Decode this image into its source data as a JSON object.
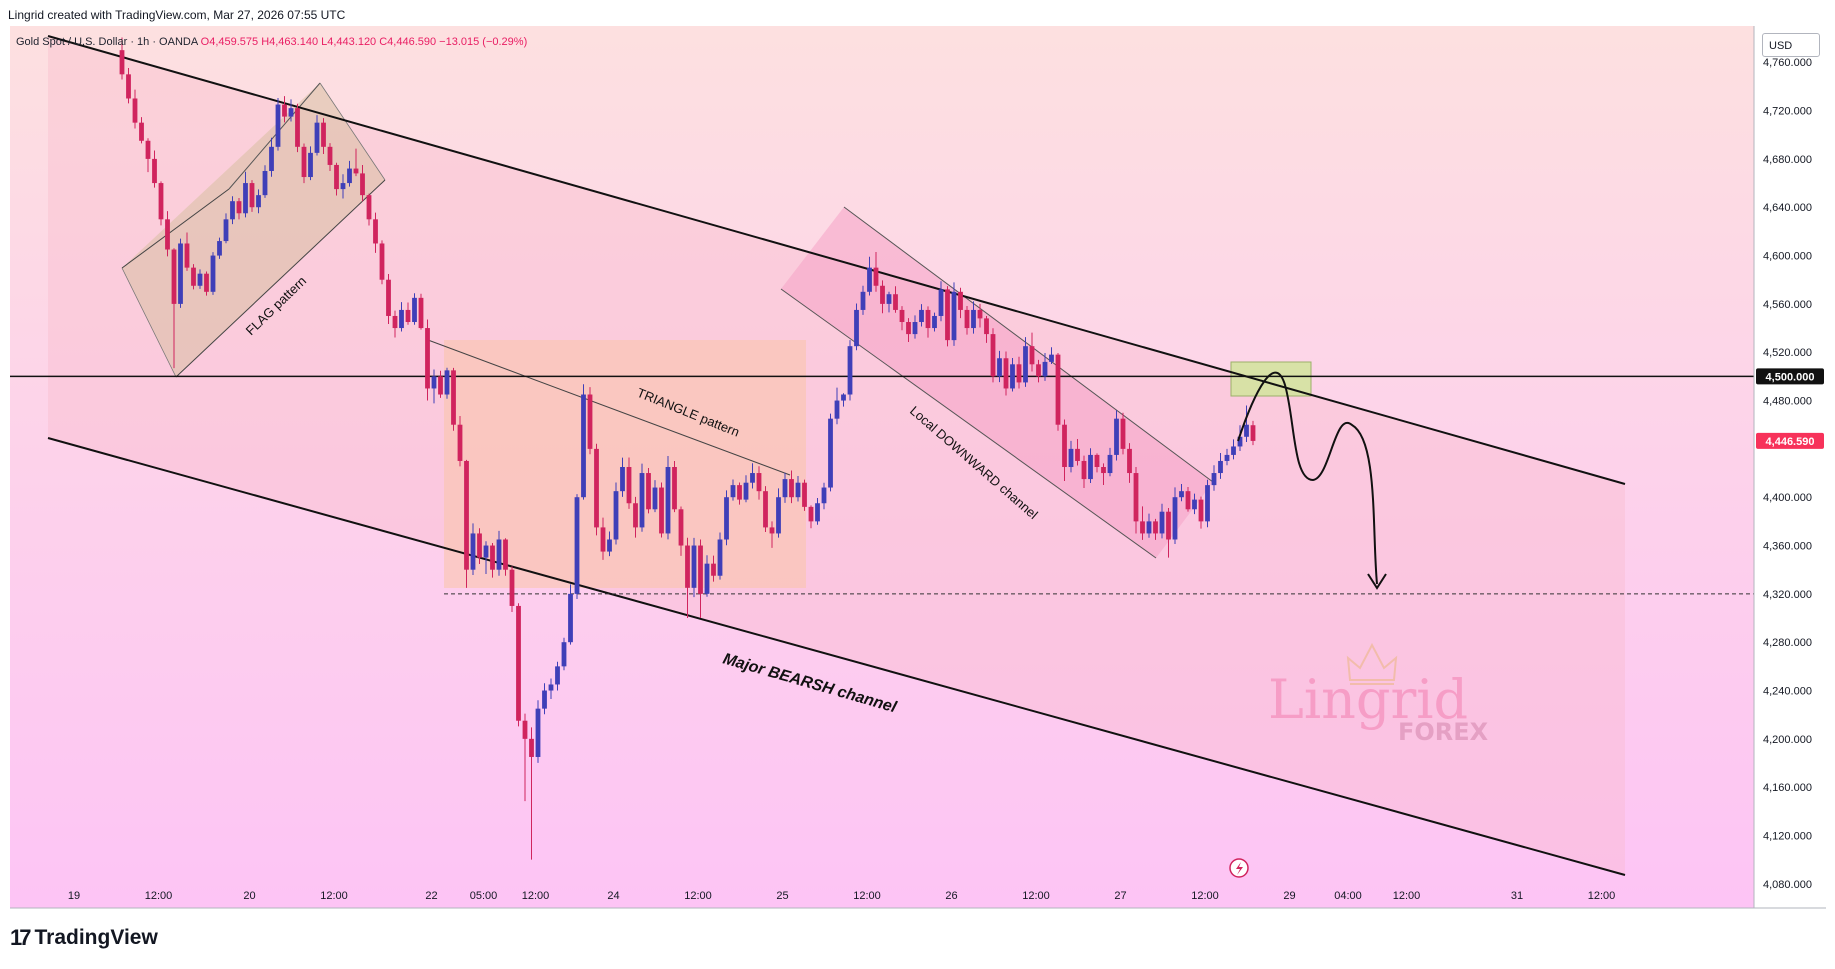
{
  "header": {
    "credit": "Lingrid created with TradingView.com, Mar 27, 2026 07:55 UTC"
  },
  "symbol": {
    "name": "Gold Spot / U.S. Dollar · 1h · OANDA",
    "ohlc": "O4,459.575 H4,463.140 L4,443.120 C4,446.590 −13.015 (−0.29%)"
  },
  "currency": "USD",
  "footer": {
    "brand": "TradingView",
    "logo_mark": "17"
  },
  "watermark": {
    "brand": "Lingrid",
    "sub": "FOREX"
  },
  "colors": {
    "bg_top": "#fde0e0",
    "bg_bottom": "#fdc4f5",
    "up": "#3f3fb8",
    "down": "#d0245e",
    "channel_fill": "#f6b8c9",
    "flag_fill": "#d9c0a3",
    "triangle_fill": "#f9c4a8",
    "local_fill": "#f5a3c7",
    "zone_fill": "#d4e3a0",
    "price_tag": "#f7325a"
  },
  "annotations": {
    "flag": "FLAG pattern",
    "triangle": "TRIANGLE pattern",
    "local_channel": "Local DOWNWARD channel",
    "major_channel": "Major BEARSH channel"
  },
  "chart_data": {
    "type": "candlestick",
    "ylim": [
      4060,
      4790
    ],
    "y_ticks": [
      "4,760.000",
      "4,720.000",
      "4,680.000",
      "4,640.000",
      "4,600.000",
      "4,560.000",
      "4,520.000",
      "4,480.000",
      "4,440.000",
      "4,400.000",
      "4,360.000",
      "4,320.000",
      "4,280.000",
      "4,240.000",
      "4,200.000",
      "4,160.000",
      "4,120.000",
      "4,080.000"
    ],
    "y_tick_values": [
      4760,
      4720,
      4680,
      4640,
      4600,
      4560,
      4520,
      4480,
      4440,
      4400,
      4360,
      4320,
      4280,
      4240,
      4200,
      4160,
      4120,
      4080
    ],
    "x_ticks": [
      "19",
      "12:00",
      "20",
      "12:00",
      "22",
      "05:00",
      "12:00",
      "24",
      "12:00",
      "25",
      "12:00",
      "26",
      "12:00",
      "27",
      "12:00",
      "29",
      "04:00",
      "12:00",
      "31",
      "12:00"
    ],
    "x_tick_bars": [
      0,
      13,
      27,
      40,
      55,
      63,
      71,
      83,
      96,
      109,
      122,
      135,
      148,
      161,
      174,
      187,
      196,
      205,
      222,
      235
    ],
    "horizontal_level": {
      "value": 4500,
      "label": "4,500.000"
    },
    "target_level": 4320,
    "last_price": {
      "value": 4446.59,
      "label": "4,446.590"
    },
    "candles": [
      [
        4770.0,
        4780.5,
        4745.7,
        4750.0
      ],
      [
        4750.0,
        4755.2,
        4726.0,
        4730.0
      ],
      [
        4730.0,
        4737.3,
        4705.2,
        4710.0
      ],
      [
        4710.0,
        4714.6,
        4692.9,
        4695.0
      ],
      [
        4695.0,
        4697.1,
        4669.1,
        4680.0
      ],
      [
        4680.0,
        4687.0,
        4656.2,
        4660.0
      ],
      [
        4660.0,
        4661.4,
        4625.0,
        4630.0
      ],
      [
        4630.0,
        4636.8,
        4599.3,
        4605.0
      ],
      [
        4605.0,
        4606.0,
        4506.8,
        4560.0
      ],
      [
        4560.0,
        4614.0,
        4556.7,
        4610.0
      ],
      [
        4610.0,
        4619.1,
        4587.3,
        4590.0
      ],
      [
        4590.0,
        4592.9,
        4572.0,
        4575.0
      ],
      [
        4575.0,
        4588.6,
        4572.4,
        4585.0
      ],
      [
        4585.0,
        4586.8,
        4566.8,
        4570.0
      ],
      [
        4570.0,
        4602.8,
        4567.5,
        4600.0
      ],
      [
        4600.0,
        4614.8,
        4597.3,
        4612.0
      ],
      [
        4612.0,
        4634.9,
        4610.2,
        4630.0
      ],
      [
        4630.0,
        4649.1,
        4626.0,
        4645.0
      ],
      [
        4645.0,
        4647.6,
        4630.0,
        4635.0
      ],
      [
        4635.0,
        4669.4,
        4631.6,
        4660.0
      ],
      [
        4660.0,
        4662.4,
        4636.2,
        4640.0
      ],
      [
        4640.0,
        4654.8,
        4635.0,
        4650.0
      ],
      [
        4650.0,
        4674.7,
        4647.7,
        4670.0
      ],
      [
        4670.0,
        4697.5,
        4665.2,
        4690.0
      ],
      [
        4690.0,
        4730.4,
        4686.9,
        4725.0
      ],
      [
        4725.0,
        4732.0,
        4710.2,
        4715.0
      ],
      [
        4715.0,
        4729.3,
        4711.0,
        4722.0
      ],
      [
        4722.0,
        4725.7,
        4685.6,
        4690.0
      ],
      [
        4690.0,
        4692.7,
        4660.0,
        4665.0
      ],
      [
        4665.0,
        4690.4,
        4662.4,
        4685.0
      ],
      [
        4685.0,
        4716.2,
        4682.8,
        4710.0
      ],
      [
        4710.0,
        4713.8,
        4684.1,
        4690.0
      ],
      [
        4690.0,
        4693.1,
        4670.0,
        4675.0
      ],
      [
        4675.0,
        4676.8,
        4649.7,
        4655.0
      ],
      [
        4655.0,
        4667.3,
        4647.2,
        4660.0
      ],
      [
        4660.0,
        4678.4,
        4657.1,
        4672.0
      ],
      [
        4672.0,
        4688.5,
        4665.7,
        4668.0
      ],
      [
        4668.0,
        4675.0,
        4645.0,
        4650.0
      ],
      [
        4650.0,
        4651.3,
        4624.9,
        4630.0
      ],
      [
        4630.0,
        4635.5,
        4602.2,
        4610.0
      ],
      [
        4610.0,
        4612.6,
        4576.3,
        4580.0
      ],
      [
        4580.0,
        4584.7,
        4543.4,
        4550.0
      ],
      [
        4550.0,
        4554.4,
        4532.2,
        4540.0
      ],
      [
        4540.0,
        4561.5,
        4537.1,
        4555.0
      ],
      [
        4555.0,
        4561.1,
        4542.7,
        4545.0
      ],
      [
        4545.0,
        4568.8,
        4542.7,
        4565.0
      ],
      [
        4565.0,
        4568.4,
        4538.7,
        4540.0
      ],
      [
        4540.0,
        4547.1,
        4480.0,
        4490.0
      ],
      [
        4490.0,
        4505.7,
        4477.7,
        4500.0
      ],
      [
        4500.0,
        4504.7,
        4482.2,
        4485.0
      ],
      [
        4485.0,
        4507.1,
        4481.5,
        4505.0
      ],
      [
        4505.0,
        4507.0,
        4455.0,
        4460.0
      ],
      [
        4460.0,
        4467.2,
        4425.5,
        4430.0
      ],
      [
        4430.0,
        4430.9,
        4325.0,
        4340.0
      ],
      [
        4340.0,
        4378.3,
        4335.6,
        4370.0
      ],
      [
        4370.0,
        4374.3,
        4344.7,
        4350.0
      ],
      [
        4350.0,
        4363.5,
        4336.4,
        4360.0
      ],
      [
        4360.0,
        4362.1,
        4333.4,
        4340.0
      ],
      [
        4340.0,
        4372.1,
        4335.0,
        4365.0
      ],
      [
        4365.0,
        4366.0,
        4335.0,
        4340.0
      ],
      [
        4340.0,
        4342.8,
        4305.0,
        4310.0
      ],
      [
        4310.0,
        4312.2,
        4210.3,
        4215.0
      ],
      [
        4215.0,
        4220.9,
        4148.5,
        4200.0
      ],
      [
        4200.0,
        4209.5,
        4100.0,
        4185.0
      ],
      [
        4185.0,
        4231.9,
        4180.1,
        4225.0
      ],
      [
        4225.0,
        4246.0,
        4220.4,
        4240.0
      ],
      [
        4240.0,
        4250.0,
        4233.0,
        4245.0
      ],
      [
        4245.0,
        4263.8,
        4240.0,
        4260.0
      ],
      [
        4260.0,
        4283.7,
        4256.8,
        4280.0
      ],
      [
        4280.0,
        4327.9,
        4278.0,
        4320.0
      ],
      [
        4320.0,
        4402.6,
        4315.7,
        4400.0
      ],
      [
        4400.0,
        4493.5,
        4398.0,
        4485.0
      ],
      [
        4485.0,
        4491.1,
        4435.6,
        4440.0
      ],
      [
        4440.0,
        4444.2,
        4368.4,
        4375.0
      ],
      [
        4375.0,
        4383.1,
        4348.1,
        4355.0
      ],
      [
        4355.0,
        4371.6,
        4351.2,
        4365.0
      ],
      [
        4365.0,
        4412.2,
        4360.9,
        4405.0
      ],
      [
        4405.0,
        4432.8,
        4400.3,
        4425.0
      ],
      [
        4425.0,
        4432.9,
        4390.3,
        4395.0
      ],
      [
        4395.0,
        4400.3,
        4366.5,
        4375.0
      ],
      [
        4375.0,
        4427.8,
        4371.4,
        4420.0
      ],
      [
        4420.0,
        4424.2,
        4386.6,
        4390.0
      ],
      [
        4390.0,
        4414.1,
        4387.7,
        4408.0
      ],
      [
        4408.0,
        4412.2,
        4366.6,
        4370.0
      ],
      [
        4370.0,
        4434.1,
        4365.1,
        4425.0
      ],
      [
        4425.0,
        4430.0,
        4387.6,
        4390.0
      ],
      [
        4390.0,
        4392.3,
        4351.4,
        4360.0
      ],
      [
        4360.0,
        4366.4,
        4300.0,
        4325.0
      ],
      [
        4325.0,
        4366.3,
        4317.3,
        4360.0
      ],
      [
        4360.0,
        4365.0,
        4300.0,
        4320.0
      ],
      [
        4320.0,
        4352.0,
        4317.6,
        4345.0
      ],
      [
        4345.0,
        4351.6,
        4330.1,
        4335.0
      ],
      [
        4335.0,
        4370.8,
        4331.8,
        4365.0
      ],
      [
        4365.0,
        4405.7,
        4360.2,
        4400.0
      ],
      [
        4400.0,
        4414.7,
        4397.2,
        4410.0
      ],
      [
        4410.0,
        4412.2,
        4393.9,
        4398.0
      ],
      [
        4398.0,
        4418.2,
        4395.8,
        4412.0
      ],
      [
        4412.0,
        4428.1,
        4407.2,
        4420.0
      ],
      [
        4420.0,
        4425.6,
        4398.0,
        4405.0
      ],
      [
        4405.0,
        4409.2,
        4371.2,
        4375.0
      ],
      [
        4375.0,
        4380.0,
        4358.1,
        4370.0
      ],
      [
        4370.0,
        4407.3,
        4366.5,
        4400.0
      ],
      [
        4400.0,
        4420.2,
        4395.3,
        4415.0
      ],
      [
        4415.0,
        4422.1,
        4395.1,
        4400.0
      ],
      [
        4400.0,
        4417.6,
        4396.4,
        4412.0
      ],
      [
        4412.0,
        4414.5,
        4388.7,
        4392.0
      ],
      [
        4392.0,
        4393.2,
        4374.3,
        4380.0
      ],
      [
        4380.0,
        4399.3,
        4377.2,
        4395.0
      ],
      [
        4395.0,
        4412.0,
        4390.0,
        4408.0
      ],
      [
        4408.0,
        4469.2,
        4404.8,
        4465.0
      ],
      [
        4465.0,
        4490.7,
        4460.4,
        4480.0
      ],
      [
        4480.0,
        4486.0,
        4475.0,
        4485.0
      ],
      [
        4485.0,
        4530.0,
        4480.0,
        4525.0
      ],
      [
        4525.0,
        4560.3,
        4521.6,
        4555.0
      ],
      [
        4555.0,
        4575.0,
        4550.9,
        4570.0
      ],
      [
        4570.0,
        4599.0,
        4566.9,
        4590.0
      ],
      [
        4590.0,
        4602.9,
        4570.0,
        4575.0
      ],
      [
        4575.0,
        4579.5,
        4552.3,
        4560.0
      ],
      [
        4560.0,
        4570.0,
        4553.0,
        4568.0
      ],
      [
        4568.0,
        4574.6,
        4552.7,
        4555.0
      ],
      [
        4555.0,
        4558.2,
        4538.2,
        4545.0
      ],
      [
        4545.0,
        4548.2,
        4528.5,
        4535.0
      ],
      [
        4535.0,
        4550.5,
        4531.2,
        4545.0
      ],
      [
        4545.0,
        4559.8,
        4541.3,
        4555.0
      ],
      [
        4555.0,
        4557.9,
        4532.1,
        4540.0
      ],
      [
        4540.0,
        4552.8,
        4537.1,
        4550.0
      ],
      [
        4550.0,
        4578.7,
        4545.6,
        4572.0
      ],
      [
        4572.0,
        4574.7,
        4524.8,
        4530.0
      ],
      [
        4530.0,
        4577.8,
        4525.2,
        4570.0
      ],
      [
        4570.0,
        4573.4,
        4548.2,
        4555.0
      ],
      [
        4555.0,
        4558.3,
        4534.6,
        4540.0
      ],
      [
        4540.0,
        4562.1,
        4535.4,
        4555.0
      ],
      [
        4555.0,
        4560.0,
        4540.5,
        4548.0
      ],
      [
        4548.0,
        4550.0,
        4527.7,
        4535.0
      ],
      [
        4535.0,
        4539.8,
        4495.0,
        4500.0
      ],
      [
        4500.0,
        4521.1,
        4495.2,
        4515.0
      ],
      [
        4515.0,
        4520.6,
        4484.2,
        4490.0
      ],
      [
        4490.0,
        4515.2,
        4487.5,
        4510.0
      ],
      [
        4510.0,
        4516.3,
        4490.0,
        4495.0
      ],
      [
        4495.0,
        4532.5,
        4491.3,
        4525.0
      ],
      [
        4525.0,
        4536.2,
        4504.0,
        4510.0
      ],
      [
        4510.0,
        4513.7,
        4495.0,
        4500.0
      ],
      [
        4500.0,
        4519.4,
        4496.3,
        4512.0
      ],
      [
        4512.0,
        4524.1,
        4510.2,
        4518.0
      ],
      [
        4518.0,
        4519.4,
        4455.0,
        4460.0
      ],
      [
        4460.0,
        4464.3,
        4413.4,
        4425.0
      ],
      [
        4425.0,
        4446.6,
        4420.5,
        4440.0
      ],
      [
        4440.0,
        4448.2,
        4426.2,
        4430.0
      ],
      [
        4430.0,
        4434.4,
        4407.6,
        4415.0
      ],
      [
        4415.0,
        4440.5,
        4411.8,
        4435.0
      ],
      [
        4435.0,
        4436.3,
        4420.5,
        4425.0
      ],
      [
        4425.0,
        4428.0,
        4410.1,
        4420.0
      ],
      [
        4420.0,
        4440.8,
        4417.3,
        4435.0
      ],
      [
        4435.0,
        4471.9,
        4430.4,
        4465.0
      ],
      [
        4465.0,
        4469.9,
        4435.4,
        4440.0
      ],
      [
        4440.0,
        4444.8,
        4411.9,
        4420.0
      ],
      [
        4420.0,
        4425.0,
        4370.0,
        4380.0
      ],
      [
        4380.0,
        4392.4,
        4364.7,
        4370.0
      ],
      [
        4370.0,
        4386.4,
        4366.4,
        4380.0
      ],
      [
        4380.0,
        4382.1,
        4364.7,
        4370.0
      ],
      [
        4370.0,
        4394.6,
        4365.9,
        4388.0
      ],
      [
        4388.0,
        4391.1,
        4350.0,
        4365.0
      ],
      [
        4365.0,
        4408.1,
        4361.3,
        4400.0
      ],
      [
        4400.0,
        4410.9,
        4396.7,
        4405.0
      ],
      [
        4405.0,
        4408.4,
        4388.1,
        4390.0
      ],
      [
        4390.0,
        4403.0,
        4386.0,
        4398.0
      ],
      [
        4398.0,
        4400.5,
        4374.0,
        4380.0
      ],
      [
        4380.0,
        4414.4,
        4375.1,
        4410.0
      ],
      [
        4410.0,
        4426.4,
        4405.3,
        4420.0
      ],
      [
        4420.0,
        4436.6,
        4415.2,
        4430.0
      ],
      [
        4430.0,
        4440.0,
        4426.5,
        4435.0
      ],
      [
        4435.0,
        4447.9,
        4431.3,
        4442.0
      ],
      [
        4442.0,
        4459.6,
        4438.2,
        4450.0
      ],
      [
        4450.0,
        4475.9,
        4445.7,
        4460.0
      ],
      [
        4459.575,
        4463.14,
        4443.12,
        4446.59
      ]
    ]
  }
}
